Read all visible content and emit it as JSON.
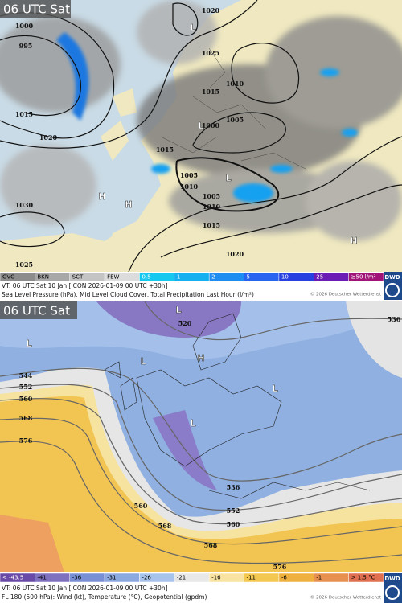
{
  "panels": [
    {
      "time_label": "06 UTC Sat",
      "legend": [
        "OVC",
        "BKN",
        "SCT",
        "FEW",
        "0.5",
        "1",
        "2",
        "5",
        "10",
        "25",
        "≥50 l/m²"
      ],
      "caption": {
        "valid": "VT: 06 UTC Sat   10 Jan [ICON 2026-01-09 00 UTC +30h]",
        "description": "Sea Level Pressure (hPa), Mid Level Cloud Cover, Total Precipitation Last Hour (l/m²)",
        "copyright": "© 2026 Deutscher Wetterdienst"
      },
      "logo": "DWD",
      "map_labels": [
        "1000",
        "995",
        "1020",
        "1025",
        "1010",
        "1015",
        "1005",
        "1000",
        "1015",
        "1020",
        "1015",
        "1005",
        "1010",
        "1005",
        "1010",
        "1015",
        "1020",
        "1030",
        "1025",
        "H",
        "H",
        "L",
        "L",
        "H",
        "L"
      ]
    },
    {
      "time_label": "06 UTC Sat",
      "legend": [
        "< -43.5",
        "-41",
        "-36",
        "-31",
        "-26",
        "-21",
        "-16",
        "-11",
        "-6",
        "-1",
        "> 1.5 °C"
      ],
      "caption": {
        "valid": "VT: 06 UTC Sat   10 Jan [ICON 2026-01-09 00 UTC +30h]",
        "description": "FL 180 (500 hPa): Wind (kt), Temperature (°C), Geopotential (gpdm)",
        "copyright": "© 2026 Deutscher Wetterdienst"
      },
      "logo": "DWD",
      "map_labels": [
        "544",
        "552",
        "560",
        "568",
        "576",
        "536",
        "520",
        "L",
        "L",
        "L",
        "H",
        "L",
        "L",
        "560",
        "552",
        "560",
        "568",
        "568",
        "576",
        "536"
      ]
    }
  ]
}
